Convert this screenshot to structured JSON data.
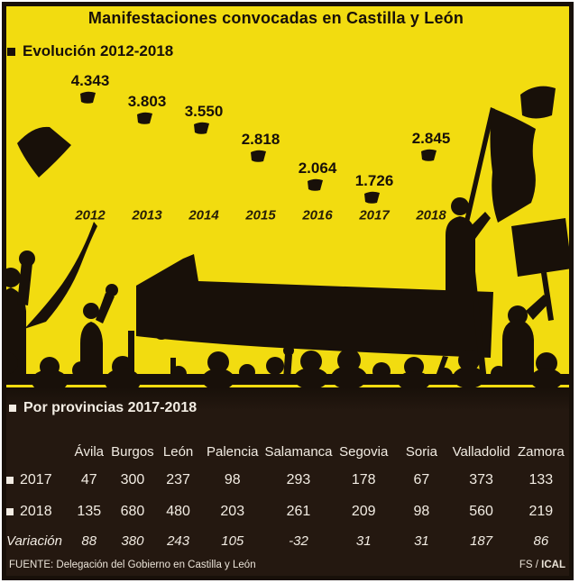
{
  "title": "Manifestaciones convocadas en Castilla y León",
  "evolution": {
    "label": "Evolución 2012-2018"
  },
  "provinces": {
    "label": "Por provincias 2017-2018"
  },
  "chart_data": [
    {
      "type": "scatter",
      "title": "Evolución 2012-2018",
      "categories": [
        "2012",
        "2013",
        "2014",
        "2015",
        "2016",
        "2017",
        "2018"
      ],
      "values": [
        4343,
        3803,
        3550,
        2818,
        2064,
        1726,
        2845
      ],
      "point_labels": [
        "4.343",
        "3.803",
        "3.550",
        "2.818",
        "2.064",
        "1.726",
        "2.845"
      ],
      "marker": "small-black-flag",
      "xlabel": "",
      "ylabel": "",
      "ylim": [
        0,
        4500
      ],
      "grid": false,
      "legend": false
    },
    {
      "type": "table",
      "title": "Por provincias 2017-2018",
      "columns": [
        "Ávila",
        "Burgos",
        "León",
        "Palencia",
        "Salamanca",
        "Segovia",
        "Soria",
        "Valladolid",
        "Zamora"
      ],
      "rows": [
        {
          "label": "2017",
          "bullet": true,
          "values": [
            "47",
            "300",
            "237",
            "98",
            "293",
            "178",
            "67",
            "373",
            "133"
          ]
        },
        {
          "label": "2018",
          "bullet": true,
          "values": [
            "135",
            "680",
            "480",
            "203",
            "261",
            "209",
            "98",
            "560",
            "219"
          ]
        },
        {
          "label": "Variación",
          "bullet": false,
          "values": [
            "88",
            "380",
            "243",
            "105",
            "-32",
            "31",
            "31",
            "187",
            "86"
          ]
        }
      ]
    }
  ],
  "footer": {
    "source": "FUENTE: Delegación del Gobierno en Castilla y León",
    "credit": "FS / ICAL",
    "credit_regular": "FS / ",
    "credit_bold": "ICAL"
  },
  "colors": {
    "background": "#f2dc10",
    "ink": "#181009",
    "panel": "#241810",
    "panel_text": "#f2ece3"
  }
}
